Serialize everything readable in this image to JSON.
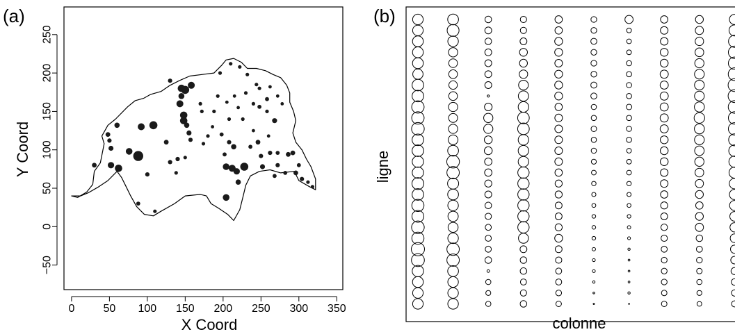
{
  "chart_data": [
    {
      "type": "scatter",
      "panel_label": "(a)",
      "xlabel": "X Coord",
      "ylabel": "Y Coord",
      "xlim": [
        -10,
        358
      ],
      "ylim": [
        -82,
        286
      ],
      "x_ticks": [
        0,
        50,
        100,
        150,
        200,
        250,
        300,
        350
      ],
      "y_ticks": [
        -50,
        0,
        50,
        100,
        150,
        200,
        250
      ],
      "grid": false,
      "boundary": [
        [
          0,
          40
        ],
        [
          8,
          38
        ],
        [
          20,
          45
        ],
        [
          28,
          55
        ],
        [
          30,
          72
        ],
        [
          38,
          83
        ],
        [
          43,
          108
        ],
        [
          40,
          118
        ],
        [
          48,
          132
        ],
        [
          58,
          140
        ],
        [
          74,
          156
        ],
        [
          84,
          164
        ],
        [
          95,
          167
        ],
        [
          104,
          172
        ],
        [
          118,
          176
        ],
        [
          130,
          184
        ],
        [
          142,
          190
        ],
        [
          156,
          196
        ],
        [
          172,
          198
        ],
        [
          188,
          200
        ],
        [
          198,
          210
        ],
        [
          204,
          217
        ],
        [
          214,
          219
        ],
        [
          224,
          214
        ],
        [
          232,
          206
        ],
        [
          244,
          206
        ],
        [
          256,
          203
        ],
        [
          266,
          198
        ],
        [
          276,
          194
        ],
        [
          284,
          184
        ],
        [
          288,
          174
        ],
        [
          288,
          162
        ],
        [
          293,
          150
        ],
        [
          296,
          138
        ],
        [
          292,
          122
        ],
        [
          296,
          110
        ],
        [
          304,
          100
        ],
        [
          310,
          88
        ],
        [
          316,
          78
        ],
        [
          322,
          62
        ],
        [
          322,
          48
        ],
        [
          314,
          52
        ],
        [
          300,
          60
        ],
        [
          294,
          72
        ],
        [
          276,
          70
        ],
        [
          262,
          74
        ],
        [
          248,
          72
        ],
        [
          236,
          66
        ],
        [
          230,
          54
        ],
        [
          226,
          38
        ],
        [
          222,
          22
        ],
        [
          214,
          8
        ],
        [
          206,
          16
        ],
        [
          194,
          24
        ],
        [
          184,
          30
        ],
        [
          178,
          40
        ],
        [
          170,
          42
        ],
        [
          150,
          40
        ],
        [
          136,
          30
        ],
        [
          118,
          20
        ],
        [
          108,
          14
        ],
        [
          96,
          16
        ],
        [
          86,
          26
        ],
        [
          78,
          40
        ],
        [
          72,
          52
        ],
        [
          66,
          64
        ],
        [
          60,
          72
        ],
        [
          48,
          60
        ],
        [
          36,
          52
        ],
        [
          22,
          44
        ],
        [
          12,
          40
        ],
        [
          0,
          40
        ]
      ],
      "points": [
        {
          "x": 30,
          "y": 80,
          "size": 1.4
        },
        {
          "x": 48,
          "y": 120,
          "size": 1.4
        },
        {
          "x": 50,
          "y": 112,
          "size": 1.3
        },
        {
          "x": 52,
          "y": 102,
          "size": 1.5
        },
        {
          "x": 52,
          "y": 80,
          "size": 1.9
        },
        {
          "x": 62,
          "y": 76,
          "size": 2.2
        },
        {
          "x": 60,
          "y": 132,
          "size": 1.6
        },
        {
          "x": 92,
          "y": 130,
          "size": 2.1
        },
        {
          "x": 108,
          "y": 132,
          "size": 2.4
        },
        {
          "x": 76,
          "y": 98,
          "size": 2.0
        },
        {
          "x": 88,
          "y": 92,
          "size": 3.0
        },
        {
          "x": 100,
          "y": 68,
          "size": 1.3
        },
        {
          "x": 88,
          "y": 30,
          "size": 1.2
        },
        {
          "x": 110,
          "y": 20,
          "size": 1.1
        },
        {
          "x": 125,
          "y": 110,
          "size": 1.4
        },
        {
          "x": 130,
          "y": 84,
          "size": 1.3
        },
        {
          "x": 140,
          "y": 88,
          "size": 1.3
        },
        {
          "x": 150,
          "y": 90,
          "size": 1.1
        },
        {
          "x": 138,
          "y": 70,
          "size": 1.1
        },
        {
          "x": 130,
          "y": 190,
          "size": 1.3
        },
        {
          "x": 145,
          "y": 180,
          "size": 2.2
        },
        {
          "x": 150,
          "y": 178,
          "size": 2.4
        },
        {
          "x": 158,
          "y": 184,
          "size": 2.1
        },
        {
          "x": 145,
          "y": 170,
          "size": 1.8
        },
        {
          "x": 143,
          "y": 160,
          "size": 2.1
        },
        {
          "x": 148,
          "y": 145,
          "size": 2.2
        },
        {
          "x": 148,
          "y": 138,
          "size": 2.2
        },
        {
          "x": 152,
          "y": 132,
          "size": 1.6
        },
        {
          "x": 155,
          "y": 122,
          "size": 1.5
        },
        {
          "x": 157,
          "y": 113,
          "size": 1.3
        },
        {
          "x": 170,
          "y": 160,
          "size": 1.1
        },
        {
          "x": 172,
          "y": 150,
          "size": 1.1
        },
        {
          "x": 174,
          "y": 108,
          "size": 1.1
        },
        {
          "x": 180,
          "y": 118,
          "size": 1.1
        },
        {
          "x": 186,
          "y": 130,
          "size": 1.0
        },
        {
          "x": 188,
          "y": 150,
          "size": 1.1
        },
        {
          "x": 193,
          "y": 170,
          "size": 1.1
        },
        {
          "x": 205,
          "y": 162,
          "size": 1.0
        },
        {
          "x": 208,
          "y": 140,
          "size": 1.1
        },
        {
          "x": 215,
          "y": 170,
          "size": 1.0
        },
        {
          "x": 220,
          "y": 155,
          "size": 1.0
        },
        {
          "x": 226,
          "y": 140,
          "size": 1.1
        },
        {
          "x": 196,
          "y": 200,
          "size": 1.1
        },
        {
          "x": 210,
          "y": 212,
          "size": 1.1
        },
        {
          "x": 222,
          "y": 208,
          "size": 1.1
        },
        {
          "x": 232,
          "y": 198,
          "size": 1.1
        },
        {
          "x": 244,
          "y": 185,
          "size": 1.1
        },
        {
          "x": 230,
          "y": 174,
          "size": 1.1
        },
        {
          "x": 240,
          "y": 160,
          "size": 1.1
        },
        {
          "x": 248,
          "y": 156,
          "size": 1.2
        },
        {
          "x": 258,
          "y": 166,
          "size": 1.2
        },
        {
          "x": 248,
          "y": 180,
          "size": 1.1
        },
        {
          "x": 258,
          "y": 150,
          "size": 1.1
        },
        {
          "x": 262,
          "y": 182,
          "size": 1.0
        },
        {
          "x": 272,
          "y": 170,
          "size": 1.0
        },
        {
          "x": 278,
          "y": 160,
          "size": 1.0
        },
        {
          "x": 268,
          "y": 138,
          "size": 1.5
        },
        {
          "x": 198,
          "y": 120,
          "size": 1.2
        },
        {
          "x": 208,
          "y": 110,
          "size": 1.3
        },
        {
          "x": 214,
          "y": 104,
          "size": 1.6
        },
        {
          "x": 202,
          "y": 94,
          "size": 1.2
        },
        {
          "x": 204,
          "y": 78,
          "size": 2.0
        },
        {
          "x": 212,
          "y": 76,
          "size": 2.1
        },
        {
          "x": 218,
          "y": 72,
          "size": 1.9
        },
        {
          "x": 228,
          "y": 78,
          "size": 2.4
        },
        {
          "x": 220,
          "y": 58,
          "size": 1.6
        },
        {
          "x": 204,
          "y": 38,
          "size": 2.0
        },
        {
          "x": 236,
          "y": 104,
          "size": 1.2
        },
        {
          "x": 246,
          "y": 110,
          "size": 1.4
        },
        {
          "x": 250,
          "y": 92,
          "size": 1.3
        },
        {
          "x": 252,
          "y": 78,
          "size": 1.5
        },
        {
          "x": 262,
          "y": 96,
          "size": 1.3
        },
        {
          "x": 272,
          "y": 96,
          "size": 1.2
        },
        {
          "x": 272,
          "y": 80,
          "size": 1.3
        },
        {
          "x": 268,
          "y": 66,
          "size": 1.2
        },
        {
          "x": 282,
          "y": 70,
          "size": 1.2
        },
        {
          "x": 286,
          "y": 94,
          "size": 1.4
        },
        {
          "x": 292,
          "y": 96,
          "size": 1.4
        },
        {
          "x": 296,
          "y": 70,
          "size": 1.4
        },
        {
          "x": 300,
          "y": 80,
          "size": 1.2
        },
        {
          "x": 304,
          "y": 62,
          "size": 1.3
        },
        {
          "x": 312,
          "y": 58,
          "size": 1.1
        },
        {
          "x": 318,
          "y": 52,
          "size": 1.1
        },
        {
          "x": 260,
          "y": 118,
          "size": 1.0
        },
        {
          "x": 240,
          "y": 125,
          "size": 1.0
        }
      ]
    },
    {
      "type": "bubble-grid",
      "panel_label": "(b)",
      "xlabel": "colonne",
      "ylabel": "ligne",
      "columns": [
        [
          0.8,
          0.8,
          0.82,
          0.82,
          0.82,
          0.78,
          0.88,
          0.88,
          0.94,
          0.94,
          0.96,
          0.88,
          0.88,
          0.86,
          0.86,
          0.9,
          0.88,
          0.92,
          0.9,
          0.96,
          0.92,
          1.0,
          0.98,
          0.86,
          0.82,
          0.8,
          0.8
        ],
        [
          0.82,
          0.9,
          0.8,
          0.7,
          0.66,
          0.66,
          0.64,
          0.66,
          0.7,
          0.68,
          0.7,
          0.74,
          0.82,
          0.96,
          0.94,
          0.84,
          0.82,
          0.8,
          0.78,
          0.76,
          0.8,
          0.94,
          0.94,
          0.82,
          0.8,
          0.8,
          0.8
        ],
        [
          0.5,
          0.52,
          0.5,
          0.52,
          0.52,
          0.52,
          0.52,
          0.16,
          0.58,
          0.7,
          0.7,
          0.6,
          0.6,
          0.56,
          0.56,
          0.54,
          0.52,
          0.5,
          0.48,
          0.46,
          0.46,
          0.46,
          0.5,
          0.2,
          0.4,
          0.38,
          0.4
        ],
        [
          0.48,
          0.48,
          0.52,
          0.6,
          0.6,
          0.64,
          0.74,
          0.78,
          0.8,
          0.88,
          0.88,
          0.8,
          0.8,
          0.8,
          0.86,
          0.86,
          0.86,
          0.86,
          0.86,
          0.86,
          0.76,
          0.52,
          0.5,
          0.5,
          0.46,
          0.48,
          0.5
        ],
        [
          0.56,
          0.56,
          0.6,
          0.6,
          0.58,
          0.6,
          0.6,
          0.6,
          0.56,
          0.58,
          0.58,
          0.58,
          0.58,
          0.58,
          0.56,
          0.54,
          0.54,
          0.52,
          0.52,
          0.54,
          0.6,
          0.52,
          0.48,
          0.46,
          0.46,
          0.44,
          0.42
        ],
        [
          0.44,
          0.44,
          0.46,
          0.44,
          0.44,
          0.44,
          0.46,
          0.46,
          0.4,
          0.4,
          0.42,
          0.4,
          0.4,
          0.38,
          0.36,
          0.34,
          0.32,
          0.3,
          0.28,
          0.28,
          0.28,
          0.26,
          0.22,
          0.22,
          0.18,
          0.14,
          0.1
        ],
        [
          0.62,
          0.36,
          0.36,
          0.36,
          0.4,
          0.4,
          0.4,
          0.4,
          0.42,
          0.4,
          0.4,
          0.4,
          0.36,
          0.36,
          0.36,
          0.34,
          0.32,
          0.3,
          0.28,
          0.26,
          0.22,
          0.18,
          0.14,
          0.14,
          0.14,
          0.18,
          0.08
        ],
        [
          0.56,
          0.58,
          0.58,
          0.6,
          0.6,
          0.62,
          0.62,
          0.62,
          0.62,
          0.62,
          0.62,
          0.6,
          0.6,
          0.6,
          0.58,
          0.58,
          0.56,
          0.54,
          0.52,
          0.5,
          0.48,
          0.46,
          0.44,
          0.44,
          0.44,
          0.42,
          0.42
        ],
        [
          0.6,
          0.62,
          0.64,
          0.66,
          0.7,
          0.74,
          0.74,
          0.74,
          0.76,
          0.8,
          0.76,
          0.74,
          0.72,
          0.7,
          0.66,
          0.62,
          0.6,
          0.56,
          0.6,
          0.62,
          0.5,
          0.46,
          0.44,
          0.42,
          0.4,
          0.38,
          0.36
        ],
        [
          0.78,
          0.84,
          0.92,
          0.94,
          0.94,
          0.96,
          0.98,
          0.98,
          0.96,
          0.94,
          0.94,
          0.9,
          0.88,
          0.86,
          0.84,
          0.8,
          0.78,
          0.76,
          0.72,
          0.7,
          0.66,
          0.62,
          0.58,
          0.54,
          0.5,
          0.48,
          0.46
        ]
      ]
    }
  ]
}
